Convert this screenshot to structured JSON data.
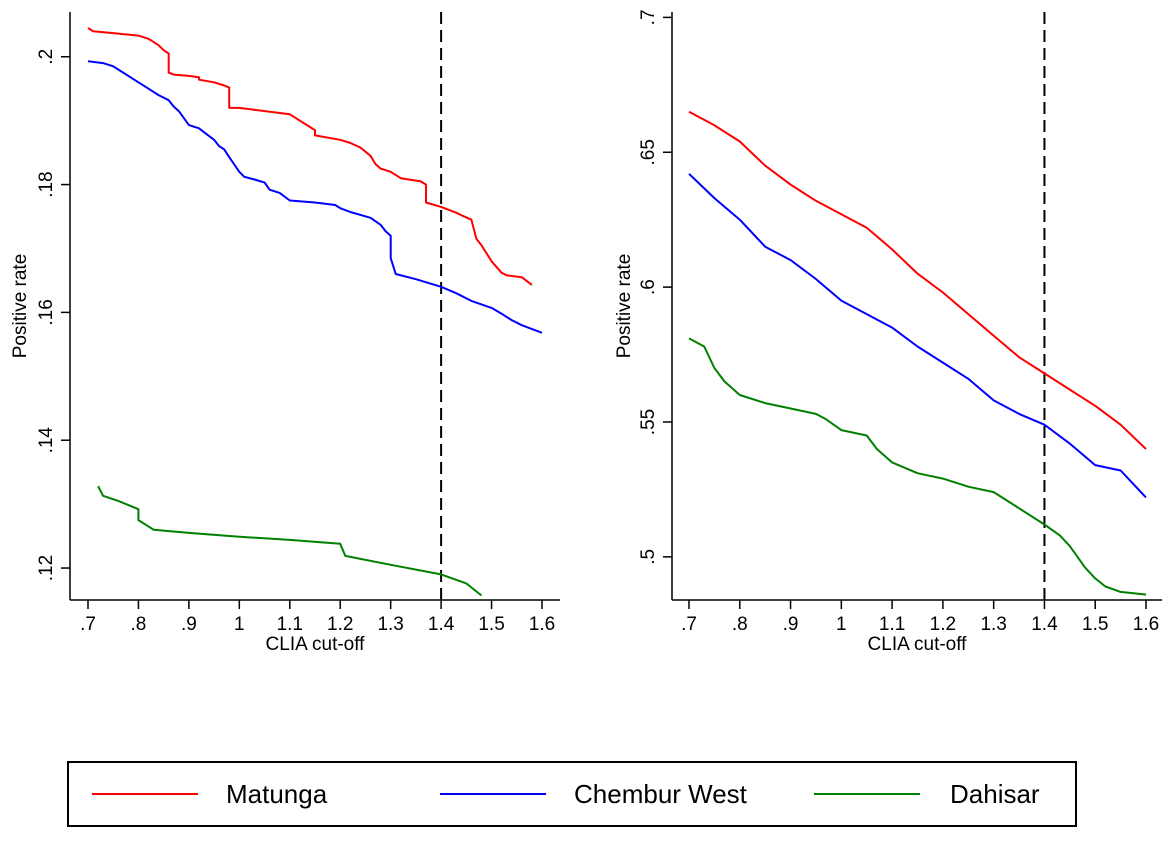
{
  "chart_data": [
    {
      "type": "line",
      "title": "",
      "xlabel": "CLIA cut-off",
      "ylabel": "Positive rate",
      "xlim": [
        0.7,
        1.6
      ],
      "ylim": [
        0.115,
        0.207
      ],
      "xticks": [
        ".7",
        ".8",
        ".9",
        "1",
        "1.1",
        "1.2",
        "1.3",
        "1.4",
        "1.5",
        "1.6"
      ],
      "xtick_values": [
        0.7,
        0.8,
        0.9,
        1.0,
        1.1,
        1.2,
        1.3,
        1.4,
        1.5,
        1.6
      ],
      "yticks": [
        ".12",
        ".14",
        ".16",
        ".18",
        ".2"
      ],
      "ytick_values": [
        0.12,
        0.14,
        0.16,
        0.18,
        0.2
      ],
      "grid": false,
      "reference_line": {
        "x": 1.4,
        "style": "dashed"
      },
      "series": [
        {
          "name": "Matunga",
          "color": "#ff0000",
          "x": [
            0.7,
            0.71,
            0.75,
            0.8,
            0.82,
            0.84,
            0.85,
            0.86,
            0.86,
            0.87,
            0.9,
            0.92,
            0.92,
            0.95,
            0.97,
            0.98,
            0.98,
            1.0,
            1.1,
            1.12,
            1.14,
            1.15,
            1.15,
            1.2,
            1.22,
            1.24,
            1.26,
            1.27,
            1.28,
            1.3,
            1.32,
            1.36,
            1.37,
            1.37,
            1.4,
            1.43,
            1.44,
            1.46,
            1.47,
            1.48,
            1.5,
            1.52,
            1.53,
            1.56,
            1.58
          ],
          "values": [
            0.2045,
            0.204,
            0.2037,
            0.2033,
            0.2028,
            0.2018,
            0.201,
            0.2005,
            0.1975,
            0.1972,
            0.197,
            0.1968,
            0.1964,
            0.196,
            0.1955,
            0.1952,
            0.192,
            0.192,
            0.191,
            0.19,
            0.189,
            0.1885,
            0.1877,
            0.187,
            0.1865,
            0.1858,
            0.1845,
            0.1832,
            0.1825,
            0.182,
            0.181,
            0.1805,
            0.18,
            0.1772,
            0.1765,
            0.1756,
            0.1752,
            0.1745,
            0.1715,
            0.1705,
            0.168,
            0.1662,
            0.1658,
            0.1655,
            0.1643
          ]
        },
        {
          "name": "Chembur West",
          "color": "#0000ff",
          "x": [
            0.7,
            0.73,
            0.75,
            0.8,
            0.82,
            0.84,
            0.86,
            0.87,
            0.88,
            0.9,
            0.92,
            0.93,
            0.95,
            0.96,
            0.97,
            0.98,
            1.0,
            1.01,
            1.03,
            1.05,
            1.06,
            1.08,
            1.1,
            1.15,
            1.19,
            1.2,
            1.22,
            1.26,
            1.28,
            1.29,
            1.3,
            1.3,
            1.31,
            1.35,
            1.4,
            1.43,
            1.46,
            1.5,
            1.52,
            1.54,
            1.56,
            1.6
          ],
          "values": [
            0.1993,
            0.199,
            0.1985,
            0.196,
            0.195,
            0.194,
            0.1932,
            0.1922,
            0.1915,
            0.1893,
            0.1888,
            0.1882,
            0.187,
            0.186,
            0.1855,
            0.1843,
            0.182,
            0.1812,
            0.1808,
            0.1803,
            0.1792,
            0.1787,
            0.1775,
            0.1772,
            0.1768,
            0.1763,
            0.1757,
            0.1748,
            0.1737,
            0.1727,
            0.172,
            0.1685,
            0.166,
            0.1652,
            0.164,
            0.163,
            0.1618,
            0.1607,
            0.1598,
            0.1588,
            0.158,
            0.1568
          ]
        },
        {
          "name": "Dahisar",
          "color": "#008000",
          "x": [
            0.72,
            0.73,
            0.76,
            0.8,
            0.8,
            0.83,
            0.9,
            1.0,
            1.1,
            1.2,
            1.21,
            1.3,
            1.4,
            1.45,
            1.48
          ],
          "values": [
            0.1328,
            0.1313,
            0.1305,
            0.1292,
            0.1275,
            0.126,
            0.1255,
            0.1249,
            0.1244,
            0.1238,
            0.1219,
            0.1205,
            0.119,
            0.1176,
            0.1157
          ]
        }
      ]
    },
    {
      "type": "line",
      "title": "",
      "xlabel": "CLIA cut-off",
      "ylabel": "Positive rate",
      "xlim": [
        0.7,
        1.6
      ],
      "ylim": [
        0.484,
        0.702
      ],
      "xticks": [
        ".7",
        ".8",
        ".9",
        "1",
        "1.1",
        "1.2",
        "1.3",
        "1.4",
        "1.5",
        "1.6"
      ],
      "xtick_values": [
        0.7,
        0.8,
        0.9,
        1.0,
        1.1,
        1.2,
        1.3,
        1.4,
        1.5,
        1.6
      ],
      "yticks": [
        ".5",
        ".55",
        ".6",
        ".65",
        ".7"
      ],
      "ytick_values": [
        0.5,
        0.55,
        0.6,
        0.65,
        0.7
      ],
      "grid": false,
      "reference_line": {
        "x": 1.4,
        "style": "dashed"
      },
      "series": [
        {
          "name": "Matunga",
          "color": "#ff0000",
          "x": [
            0.7,
            0.75,
            0.8,
            0.85,
            0.9,
            0.95,
            1.0,
            1.05,
            1.1,
            1.15,
            1.2,
            1.25,
            1.3,
            1.35,
            1.4,
            1.45,
            1.5,
            1.55,
            1.6
          ],
          "values": [
            0.665,
            0.66,
            0.654,
            0.645,
            0.638,
            0.632,
            0.627,
            0.622,
            0.614,
            0.605,
            0.598,
            0.59,
            0.582,
            0.574,
            0.568,
            0.562,
            0.556,
            0.549,
            0.54
          ]
        },
        {
          "name": "Chembur West",
          "color": "#0000ff",
          "x": [
            0.7,
            0.75,
            0.8,
            0.85,
            0.9,
            0.95,
            1.0,
            1.05,
            1.1,
            1.15,
            1.2,
            1.25,
            1.3,
            1.35,
            1.4,
            1.45,
            1.5,
            1.55,
            1.6
          ],
          "values": [
            0.642,
            0.633,
            0.625,
            0.615,
            0.61,
            0.603,
            0.595,
            0.59,
            0.585,
            0.578,
            0.572,
            0.566,
            0.558,
            0.553,
            0.549,
            0.542,
            0.534,
            0.532,
            0.522
          ]
        },
        {
          "name": "Dahisar",
          "color": "#008000",
          "x": [
            0.7,
            0.73,
            0.75,
            0.77,
            0.8,
            0.85,
            0.9,
            0.95,
            0.97,
            1.0,
            1.05,
            1.07,
            1.1,
            1.15,
            1.2,
            1.25,
            1.3,
            1.35,
            1.4,
            1.43,
            1.45,
            1.48,
            1.5,
            1.52,
            1.55,
            1.6
          ],
          "values": [
            0.581,
            0.578,
            0.57,
            0.565,
            0.56,
            0.557,
            0.555,
            0.553,
            0.551,
            0.547,
            0.545,
            0.54,
            0.535,
            0.531,
            0.529,
            0.526,
            0.524,
            0.518,
            0.512,
            0.508,
            0.504,
            0.496,
            0.492,
            0.489,
            0.487,
            0.486
          ]
        }
      ]
    }
  ],
  "legend": {
    "position": "bottom",
    "items": [
      {
        "label": "Matunga",
        "color": "#ff0000"
      },
      {
        "label": "Chembur West",
        "color": "#0000ff"
      },
      {
        "label": "Dahisar",
        "color": "#008000"
      }
    ]
  }
}
